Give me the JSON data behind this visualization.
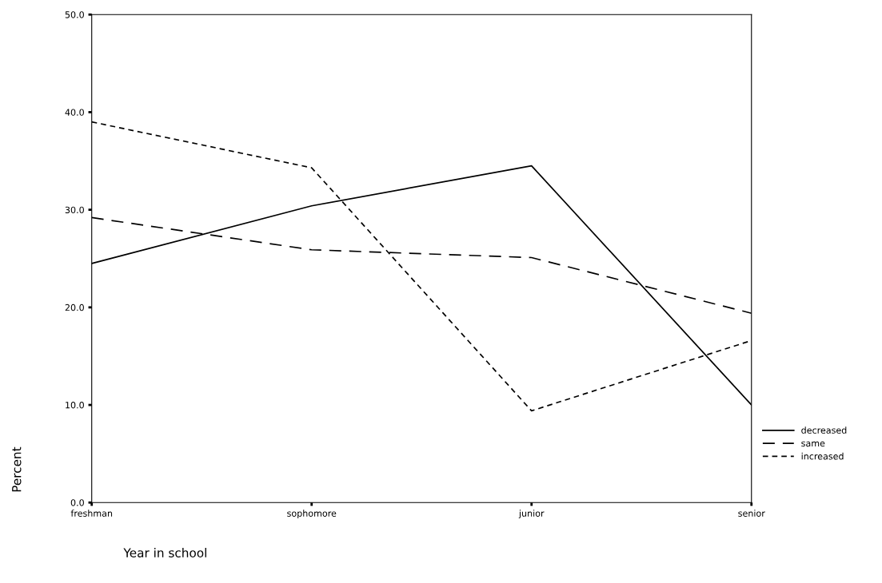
{
  "chart_data": {
    "type": "line",
    "xlabel": "Year in school",
    "ylabel": "Percent",
    "categories": [
      "freshman",
      "sophomore",
      "junior",
      "senior"
    ],
    "series": [
      {
        "name": "decreased",
        "color": "#000000",
        "line_style": "solid",
        "values": [
          24.5,
          30.4,
          34.5,
          10.0
        ]
      },
      {
        "name": "same",
        "color": "#000000",
        "line_style": "longdash",
        "values": [
          29.2,
          25.9,
          25.1,
          19.4
        ]
      },
      {
        "name": "increased",
        "color": "#000000",
        "line_style": "dashed",
        "values": [
          39.0,
          34.3,
          9.4,
          16.6
        ]
      }
    ],
    "ylim": [
      0,
      50
    ],
    "yticks": [
      {
        "value": 0,
        "label": "0.0"
      },
      {
        "value": 10,
        "label": "10.0"
      },
      {
        "value": 20,
        "label": "20.0"
      },
      {
        "value": 30,
        "label": "30.0"
      },
      {
        "value": 40,
        "label": "40.0"
      },
      {
        "value": 50,
        "label": "50.0"
      }
    ],
    "grid": false,
    "legend": "right",
    "marker": "none"
  }
}
